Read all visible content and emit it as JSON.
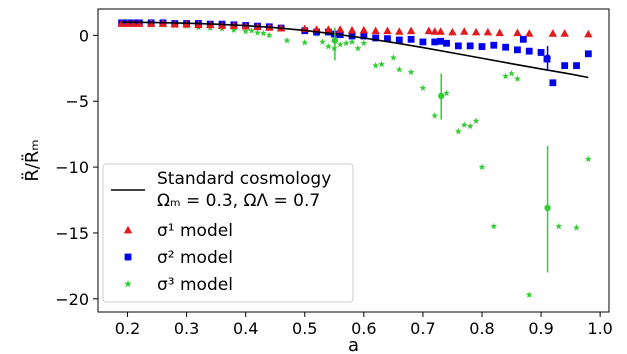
{
  "chart_data": {
    "type": "scatter",
    "xlabel": "a",
    "ylabel": "R̈/R̈ₘ",
    "xlim": [
      0.15,
      1.015
    ],
    "ylim": [
      -21,
      2
    ],
    "xticks": [
      0.2,
      0.3,
      0.4,
      0.5,
      0.6,
      0.7,
      0.8,
      0.9,
      1.0
    ],
    "xtick_labels": [
      "0.2",
      "0.3",
      "0.4",
      "0.5",
      "0.6",
      "0.7",
      "0.8",
      "0.9",
      "1.0"
    ],
    "yticks": [
      0,
      -5,
      -10,
      -15,
      -20
    ],
    "ytick_labels": [
      "0",
      "−5",
      "−10",
      "−15",
      "−20"
    ],
    "grid": false,
    "legend_position": "lower-left",
    "legend": [
      {
        "label": "Standard cosmology",
        "label2": "Ωₘ = 0.3, ΩΛ = 0.7",
        "marker": "line",
        "color": "#000000"
      },
      {
        "label": "σ¹ model",
        "marker": "triangle",
        "color": "#e31a1c"
      },
      {
        "label": "σ² model",
        "marker": "square",
        "color": "#0000ee"
      },
      {
        "label": "σ³ model",
        "marker": "star",
        "color": "#33cc33"
      }
    ],
    "series": [
      {
        "name": "Standard cosmology",
        "kind": "line",
        "color": "#000000",
        "x": [
          0.19,
          0.25,
          0.3,
          0.35,
          0.4,
          0.45,
          0.5,
          0.55,
          0.6,
          0.65,
          0.7,
          0.75,
          0.8,
          0.85,
          0.9,
          0.95,
          0.98
        ],
        "y": [
          1.0,
          0.97,
          0.92,
          0.85,
          0.74,
          0.58,
          0.37,
          0.11,
          -0.2,
          -0.55,
          -0.93,
          -1.33,
          -1.74,
          -2.15,
          -2.55,
          -2.94,
          -3.2
        ]
      },
      {
        "name": "σ¹ model",
        "kind": "points",
        "marker": "triangle",
        "color": "#e31a1c",
        "x": [
          0.19,
          0.2,
          0.21,
          0.22,
          0.24,
          0.26,
          0.28,
          0.3,
          0.32,
          0.34,
          0.36,
          0.38,
          0.4,
          0.42,
          0.44,
          0.46,
          0.5,
          0.52,
          0.54,
          0.56,
          0.58,
          0.6,
          0.62,
          0.64,
          0.66,
          0.68,
          0.71,
          0.72,
          0.73,
          0.75,
          0.77,
          0.79,
          0.81,
          0.83,
          0.86,
          0.88,
          0.92,
          0.94,
          0.98
        ],
        "y": [
          0.9,
          0.9,
          0.9,
          0.9,
          0.9,
          0.9,
          0.85,
          0.85,
          0.8,
          0.8,
          0.75,
          0.75,
          0.7,
          0.65,
          0.6,
          0.55,
          0.5,
          0.45,
          0.45,
          0.45,
          0.4,
          0.4,
          0.35,
          0.35,
          0.3,
          0.35,
          0.35,
          0.3,
          0.3,
          0.25,
          0.3,
          0.25,
          0.25,
          0.2,
          0.2,
          0.15,
          0.15,
          0.15,
          0.1
        ]
      },
      {
        "name": "σ² model",
        "kind": "points",
        "marker": "square",
        "color": "#0000ee",
        "x": [
          0.19,
          0.2,
          0.21,
          0.22,
          0.24,
          0.26,
          0.28,
          0.3,
          0.32,
          0.34,
          0.36,
          0.38,
          0.4,
          0.42,
          0.44,
          0.46,
          0.5,
          0.52,
          0.54,
          0.55,
          0.56,
          0.58,
          0.6,
          0.62,
          0.64,
          0.66,
          0.68,
          0.7,
          0.72,
          0.73,
          0.74,
          0.76,
          0.78,
          0.8,
          0.82,
          0.84,
          0.86,
          0.87,
          0.88,
          0.9,
          0.91,
          0.92,
          0.94,
          0.96,
          0.98
        ],
        "y": [
          0.95,
          0.95,
          0.95,
          0.95,
          0.95,
          0.95,
          0.9,
          0.9,
          0.9,
          0.85,
          0.85,
          0.8,
          0.75,
          0.7,
          0.65,
          0.55,
          0.35,
          0.25,
          0.25,
          0.1,
          0.05,
          -0.05,
          -0.05,
          -0.2,
          -0.25,
          -0.35,
          -0.3,
          -0.5,
          -0.5,
          -0.45,
          -0.6,
          -0.8,
          -0.8,
          -0.85,
          -0.75,
          -0.9,
          -1.1,
          -0.3,
          -1.2,
          -1.3,
          -1.8,
          -3.6,
          -2.3,
          -2.3,
          -1.4
        ]
      },
      {
        "name": "σ³ model",
        "kind": "points",
        "marker": "star",
        "color": "#33cc33",
        "x": [
          0.19,
          0.2,
          0.22,
          0.24,
          0.26,
          0.28,
          0.3,
          0.32,
          0.34,
          0.36,
          0.38,
          0.4,
          0.41,
          0.42,
          0.43,
          0.44,
          0.47,
          0.5,
          0.52,
          0.53,
          0.54,
          0.55,
          0.56,
          0.57,
          0.58,
          0.59,
          0.6,
          0.62,
          0.63,
          0.65,
          0.66,
          0.68,
          0.7,
          0.72,
          0.74,
          0.76,
          0.77,
          0.78,
          0.79,
          0.8,
          0.82,
          0.84,
          0.85,
          0.86,
          0.88,
          0.93,
          0.96,
          0.98
        ],
        "y": [
          0.95,
          0.9,
          0.85,
          0.8,
          0.8,
          0.75,
          0.7,
          0.6,
          0.55,
          0.5,
          0.4,
          0.3,
          0.35,
          0.2,
          0.15,
          0.0,
          -0.4,
          -0.55,
          0.1,
          -0.5,
          -0.85,
          -1.0,
          -0.7,
          -0.6,
          -0.5,
          -1.0,
          -0.6,
          -2.3,
          -2.2,
          -1.7,
          -2.6,
          -2.8,
          -4.0,
          -6.1,
          -4.4,
          -7.3,
          -6.8,
          -6.9,
          -6.5,
          -10.0,
          -14.5,
          -3.1,
          -2.9,
          -3.3,
          -19.7,
          -14.5,
          -14.6,
          -9.4
        ]
      },
      {
        "name": "σ³ model error bars",
        "kind": "errorbars",
        "color": "#33cc33",
        "points": [
          {
            "x": 0.551,
            "y": -0.4,
            "low": -1.9,
            "high": 0.6
          },
          {
            "x": 0.731,
            "y": -4.6,
            "low": -6.4,
            "high": -2.9
          },
          {
            "x": 0.911,
            "y": -13.1,
            "low": -18.0,
            "high": -8.4
          }
        ]
      },
      {
        "name": "σ² model error bar",
        "kind": "errorbars",
        "color": "#0000ee",
        "points": [
          {
            "x": 0.911,
            "y": -1.7,
            "low": -2.7,
            "high": -0.8
          }
        ]
      }
    ]
  }
}
